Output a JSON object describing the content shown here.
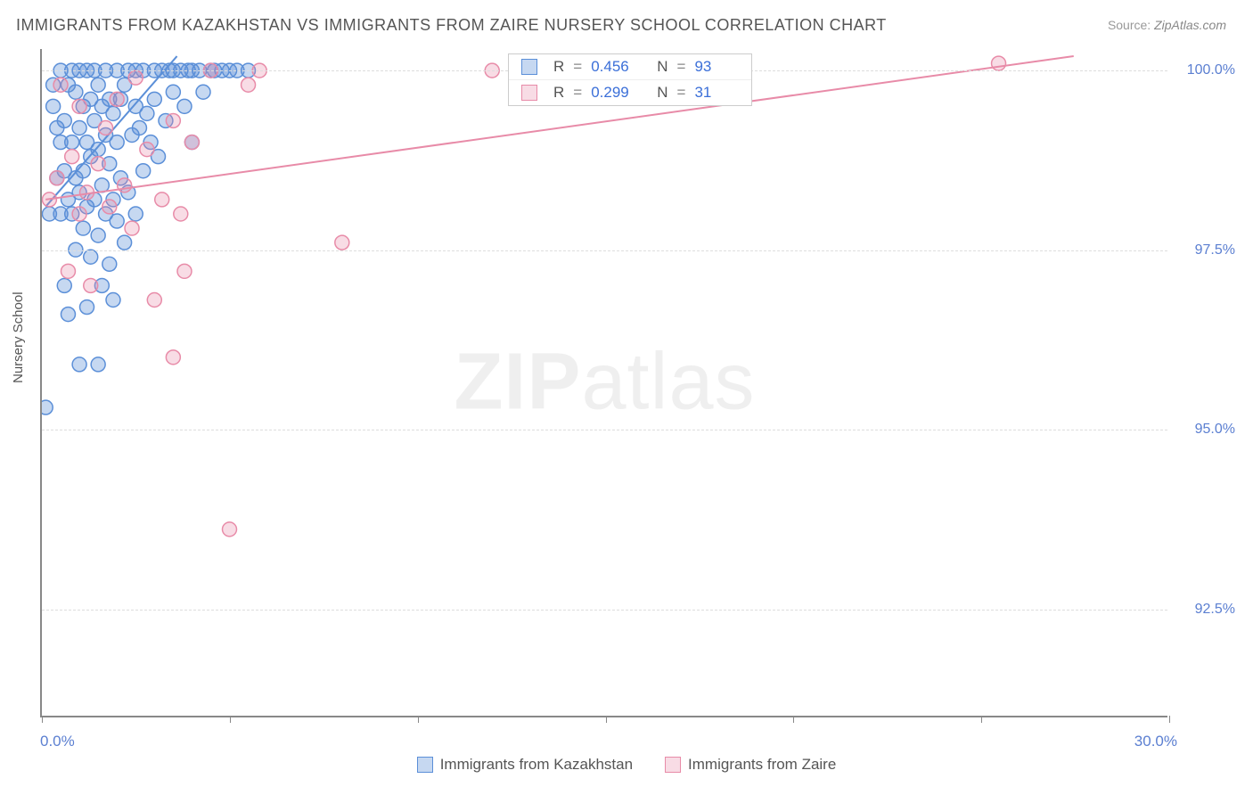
{
  "title": "IMMIGRANTS FROM KAZAKHSTAN VS IMMIGRANTS FROM ZAIRE NURSERY SCHOOL CORRELATION CHART",
  "source_label": "Source:",
  "source_value": "ZipAtlas.com",
  "y_axis_label": "Nursery School",
  "watermark_a": "ZIP",
  "watermark_b": "atlas",
  "chart": {
    "type": "scatter",
    "background_color": "#ffffff",
    "grid_color": "#dddddd",
    "axis_color": "#888888",
    "tick_label_color": "#5b7fd1",
    "tick_fontsize": 16,
    "title_fontsize": 18,
    "axis_label_fontsize": 15,
    "x_min": 0.0,
    "x_max": 30.0,
    "x_min_label": "0.0%",
    "x_max_label": "30.0%",
    "y_min": 91.0,
    "y_max": 100.3,
    "y_ticks": [
      92.5,
      95.0,
      97.5,
      100.0
    ],
    "y_tick_labels": [
      "92.5%",
      "95.0%",
      "97.5%",
      "100.0%"
    ],
    "x_tick_marks": [
      0,
      5,
      10,
      15,
      20,
      25,
      30
    ],
    "marker_radius": 8,
    "marker_stroke_width": 1.5,
    "marker_fill_opacity": 0.35,
    "line_width": 2
  },
  "series": [
    {
      "name": "Immigrants from Kazakhstan",
      "color": "#5b8fd8",
      "fill": "rgba(91,143,216,0.35)",
      "stats": {
        "R": "0.456",
        "N": "93"
      },
      "trend": {
        "x1": 0.1,
        "y1": 98.1,
        "x2": 3.6,
        "y2": 100.2
      },
      "points": [
        [
          0.1,
          95.3
        ],
        [
          0.2,
          98.0
        ],
        [
          0.3,
          99.5
        ],
        [
          0.3,
          99.8
        ],
        [
          0.4,
          98.5
        ],
        [
          0.4,
          99.2
        ],
        [
          0.5,
          98.0
        ],
        [
          0.5,
          99.0
        ],
        [
          0.5,
          100.0
        ],
        [
          0.6,
          97.0
        ],
        [
          0.6,
          98.6
        ],
        [
          0.6,
          99.3
        ],
        [
          0.7,
          96.6
        ],
        [
          0.7,
          98.2
        ],
        [
          0.7,
          99.8
        ],
        [
          0.8,
          98.0
        ],
        [
          0.8,
          99.0
        ],
        [
          0.8,
          100.0
        ],
        [
          0.9,
          97.5
        ],
        [
          0.9,
          98.5
        ],
        [
          0.9,
          99.7
        ],
        [
          1.0,
          95.9
        ],
        [
          1.0,
          98.3
        ],
        [
          1.0,
          99.2
        ],
        [
          1.0,
          100.0
        ],
        [
          1.1,
          97.8
        ],
        [
          1.1,
          98.6
        ],
        [
          1.1,
          99.5
        ],
        [
          1.2,
          96.7
        ],
        [
          1.2,
          98.1
        ],
        [
          1.2,
          99.0
        ],
        [
          1.2,
          100.0
        ],
        [
          1.3,
          97.4
        ],
        [
          1.3,
          98.8
        ],
        [
          1.3,
          99.6
        ],
        [
          1.4,
          98.2
        ],
        [
          1.4,
          99.3
        ],
        [
          1.4,
          100.0
        ],
        [
          1.5,
          95.9
        ],
        [
          1.5,
          97.7
        ],
        [
          1.5,
          98.9
        ],
        [
          1.5,
          99.8
        ],
        [
          1.6,
          97.0
        ],
        [
          1.6,
          98.4
        ],
        [
          1.6,
          99.5
        ],
        [
          1.7,
          98.0
        ],
        [
          1.7,
          99.1
        ],
        [
          1.7,
          100.0
        ],
        [
          1.8,
          97.3
        ],
        [
          1.8,
          98.7
        ],
        [
          1.8,
          99.6
        ],
        [
          1.9,
          96.8
        ],
        [
          1.9,
          98.2
        ],
        [
          1.9,
          99.4
        ],
        [
          2.0,
          97.9
        ],
        [
          2.0,
          99.0
        ],
        [
          2.0,
          100.0
        ],
        [
          2.1,
          98.5
        ],
        [
          2.1,
          99.6
        ],
        [
          2.2,
          97.6
        ],
        [
          2.2,
          99.8
        ],
        [
          2.3,
          98.3
        ],
        [
          2.3,
          100.0
        ],
        [
          2.4,
          99.1
        ],
        [
          2.5,
          98.0
        ],
        [
          2.5,
          99.5
        ],
        [
          2.5,
          100.0
        ],
        [
          2.6,
          99.2
        ],
        [
          2.7,
          98.6
        ],
        [
          2.7,
          100.0
        ],
        [
          2.8,
          99.4
        ],
        [
          2.9,
          99.0
        ],
        [
          3.0,
          100.0
        ],
        [
          3.0,
          99.6
        ],
        [
          3.1,
          98.8
        ],
        [
          3.2,
          100.0
        ],
        [
          3.3,
          99.3
        ],
        [
          3.4,
          100.0
        ],
        [
          3.5,
          99.7
        ],
        [
          3.5,
          100.0
        ],
        [
          3.7,
          100.0
        ],
        [
          3.8,
          99.5
        ],
        [
          3.9,
          100.0
        ],
        [
          4.0,
          99.0
        ],
        [
          4.0,
          100.0
        ],
        [
          4.2,
          100.0
        ],
        [
          4.3,
          99.7
        ],
        [
          4.5,
          100.0
        ],
        [
          4.6,
          100.0
        ],
        [
          4.8,
          100.0
        ],
        [
          5.0,
          100.0
        ],
        [
          5.2,
          100.0
        ],
        [
          5.5,
          100.0
        ]
      ]
    },
    {
      "name": "Immigrants from Zaire",
      "color": "#e88ba8",
      "fill": "rgba(232,139,168,0.30)",
      "stats": {
        "R": "0.299",
        "N": "31"
      },
      "trend": {
        "x1": 0.1,
        "y1": 98.2,
        "x2": 27.5,
        "y2": 100.2
      },
      "points": [
        [
          0.2,
          98.2
        ],
        [
          0.4,
          98.5
        ],
        [
          0.5,
          99.8
        ],
        [
          0.7,
          97.2
        ],
        [
          0.8,
          98.8
        ],
        [
          1.0,
          98.0
        ],
        [
          1.0,
          99.5
        ],
        [
          1.2,
          98.3
        ],
        [
          1.3,
          97.0
        ],
        [
          1.5,
          98.7
        ],
        [
          1.7,
          99.2
        ],
        [
          1.8,
          98.1
        ],
        [
          2.0,
          99.6
        ],
        [
          2.2,
          98.4
        ],
        [
          2.4,
          97.8
        ],
        [
          2.5,
          99.9
        ],
        [
          2.8,
          98.9
        ],
        [
          3.0,
          96.8
        ],
        [
          3.2,
          98.2
        ],
        [
          3.5,
          99.3
        ],
        [
          3.5,
          96.0
        ],
        [
          3.7,
          98.0
        ],
        [
          3.8,
          97.2
        ],
        [
          4.0,
          99.0
        ],
        [
          4.5,
          100.0
        ],
        [
          5.0,
          93.6
        ],
        [
          5.5,
          99.8
        ],
        [
          5.8,
          100.0
        ],
        [
          8.0,
          97.6
        ],
        [
          12.0,
          100.0
        ],
        [
          25.5,
          100.1
        ]
      ]
    }
  ],
  "legend": {
    "r_label": "R",
    "n_label": "N",
    "eq": "="
  }
}
